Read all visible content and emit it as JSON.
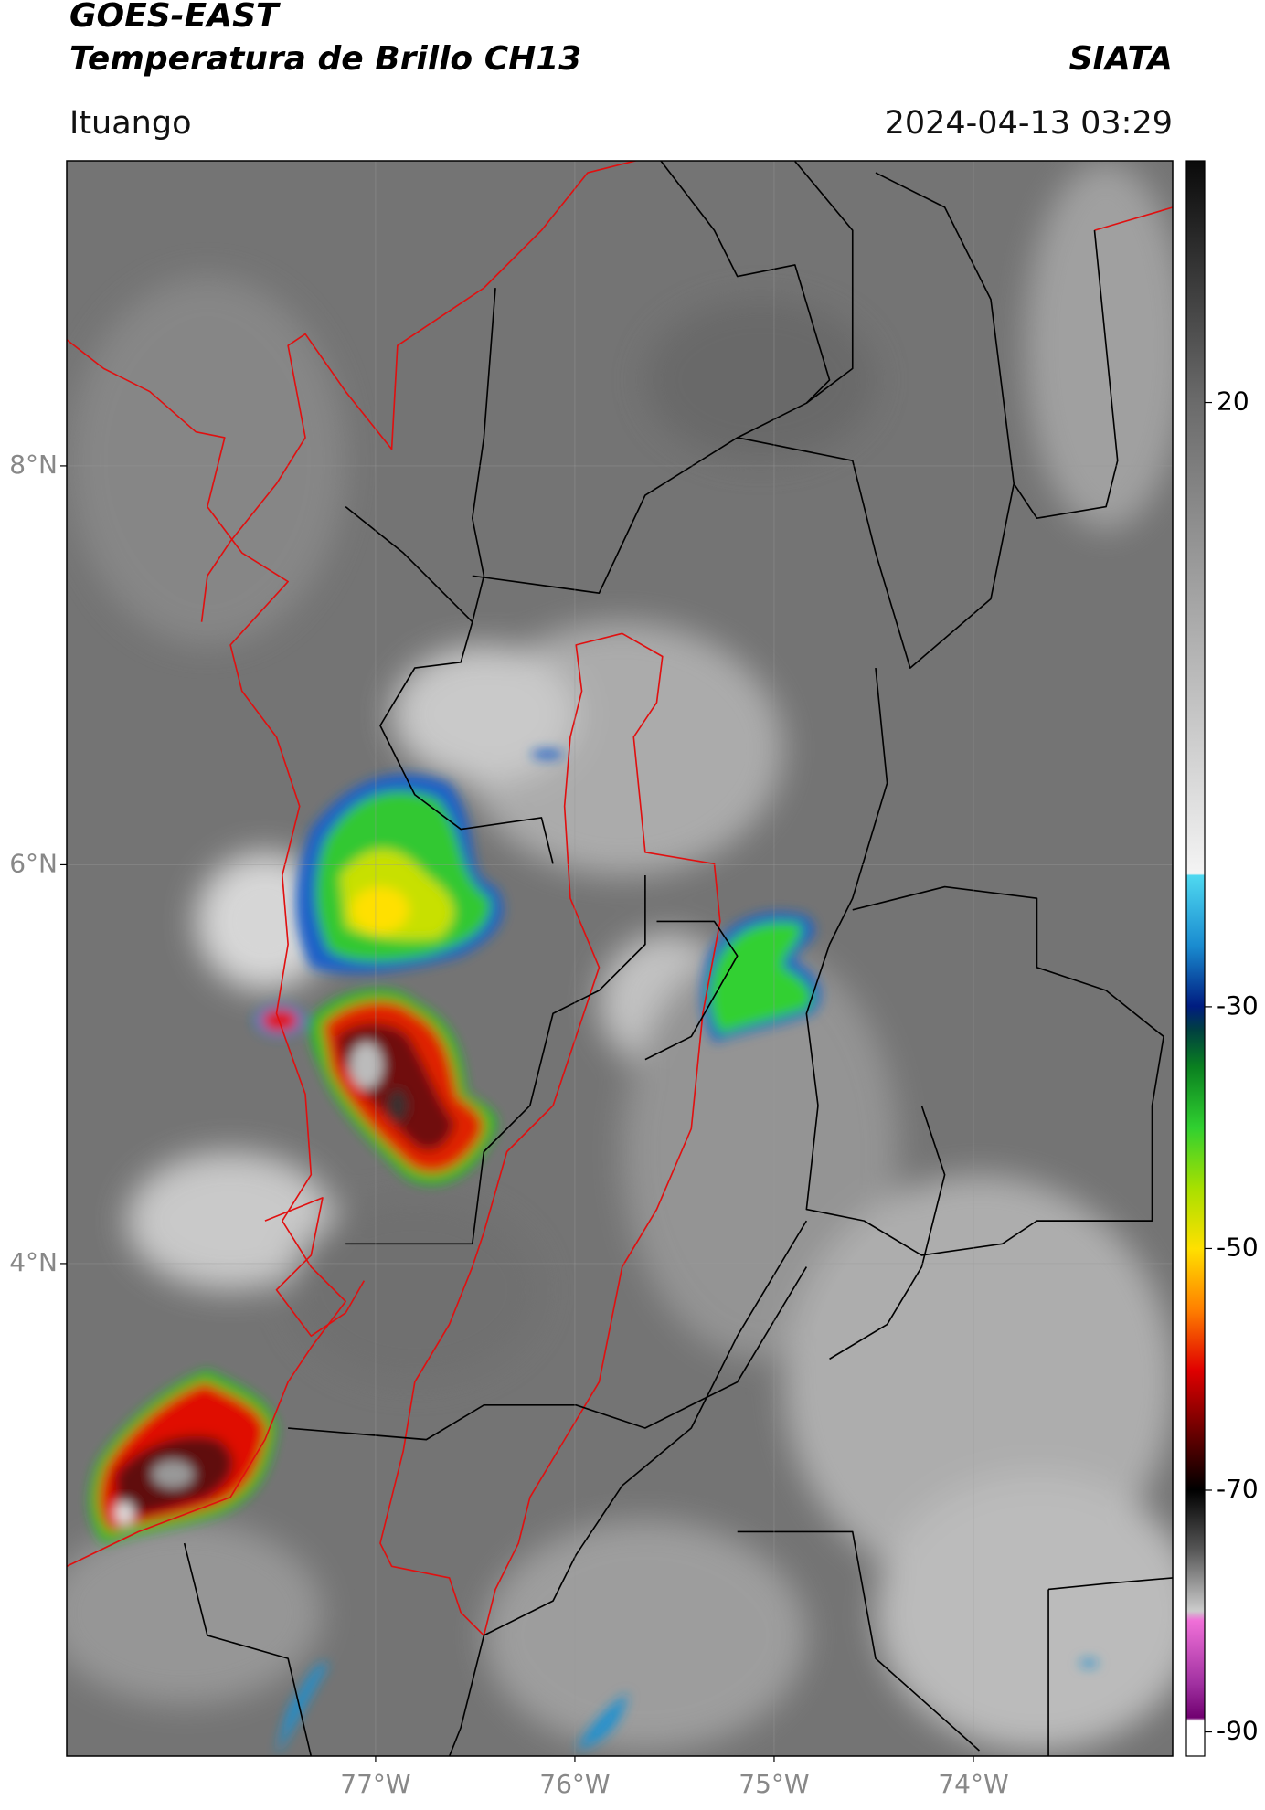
{
  "header": {
    "satellite": "GOES-EAST",
    "product": "Temperatura de Brillo CH13",
    "agency": "SIATA",
    "region": "Ituango",
    "datetime": "2024-04-13 03:29"
  },
  "map": {
    "xlim": [
      -78.55,
      -73.0
    ],
    "ylim": [
      1.53,
      9.53
    ],
    "xticks": [
      {
        "value": -77,
        "label": "77°W"
      },
      {
        "value": -76,
        "label": "76°W"
      },
      {
        "value": -75,
        "label": "75°W"
      },
      {
        "value": -74,
        "label": "74°W"
      }
    ],
    "yticks": [
      {
        "value": 8,
        "label": "8°N"
      },
      {
        "value": 6,
        "label": "6°N"
      },
      {
        "value": 4,
        "label": "4°N"
      }
    ],
    "grid": true
  },
  "colorbar": {
    "lim": [
      -92,
      40
    ],
    "ticks": [
      20,
      -30,
      -50,
      -70,
      -90
    ]
  }
}
